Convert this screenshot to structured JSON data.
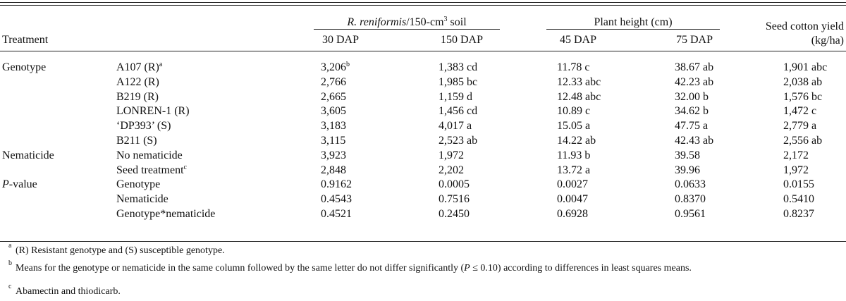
{
  "header": {
    "treatment": "Treatment",
    "reniformis": {
      "species": "R. reniformis",
      "unit": "/150-cm",
      "sup": "3",
      "rest": " soil"
    },
    "height": "Plant height (cm)",
    "yield": "Seed cotton yield (kg/ha)",
    "subheaders": [
      "30 DAP",
      "150 DAP",
      "45 DAP",
      "75 DAP"
    ]
  },
  "table": {
    "groups": [
      {
        "name": "Genotype",
        "rows": [
          {
            "label": "A107 (R)",
            "label_sup": "a",
            "cells": [
              {
                "text": "3,206",
                "sup": "b"
              },
              "1,383 cd",
              "11.78 c",
              "38.67 ab",
              "1,901 abc"
            ]
          },
          {
            "label": "A122 (R)",
            "cells": [
              "2,766",
              "1,985 bc",
              "12.33 abc",
              "42.23 ab",
              "2,038 ab"
            ]
          },
          {
            "label": "B219 (R)",
            "cells": [
              "2,665",
              "1,159 d",
              "12.48 abc",
              "32.00 b",
              "1,576 bc"
            ]
          },
          {
            "label": "LONREN-1 (R)",
            "cells": [
              "3,605",
              "1,456 cd",
              "10.89 c",
              "34.62 b",
              "1,472 c"
            ]
          },
          {
            "label": "‘DP393’ (S)",
            "cells": [
              "3,183",
              "4,017 a",
              "15.05 a",
              "47.75 a",
              "2,779 a"
            ]
          },
          {
            "label": "B211 (S)",
            "cells": [
              "3,115",
              "2,523 ab",
              "14.22 ab",
              "42.43 ab",
              "2,556 ab"
            ]
          }
        ]
      },
      {
        "name": "Nematicide",
        "rows": [
          {
            "label": "No nematicide",
            "cells": [
              "3,923",
              "1,972",
              "11.93 b",
              "39.58",
              "2,172"
            ]
          },
          {
            "label": "Seed treatment",
            "label_sup": "c",
            "cells": [
              "2,848",
              "2,202",
              "13.72 a",
              "39.96",
              "1,972"
            ]
          }
        ]
      },
      {
        "name": {
          "italic": "P",
          "rest": "-value"
        },
        "rows": [
          {
            "label": "Genotype",
            "cells": [
              "0.9162",
              "0.0005",
              "0.0027",
              "0.0633",
              "0.0155"
            ]
          },
          {
            "label": "Nematicide",
            "cells": [
              "0.4543",
              "0.7516",
              "0.0047",
              "0.8370",
              "0.5410"
            ]
          },
          {
            "label": "Genotype*nematicide",
            "cells": [
              "0.4521",
              "0.2450",
              "0.6928",
              "0.9561",
              "0.8237"
            ]
          }
        ]
      }
    ]
  },
  "footnotes": [
    {
      "mark": "a",
      "text": "(R) Resistant genotype and (S) susceptible genotype."
    },
    {
      "mark": "b",
      "pre": "Means for the genotype or nematicide in the same column followed by the same letter do not differ significantly (",
      "italic": "P",
      "post": " ≤ 0.10) according to differences in least squares means."
    },
    {
      "mark": "c",
      "text": "Abamectin and thiodicarb."
    }
  ]
}
